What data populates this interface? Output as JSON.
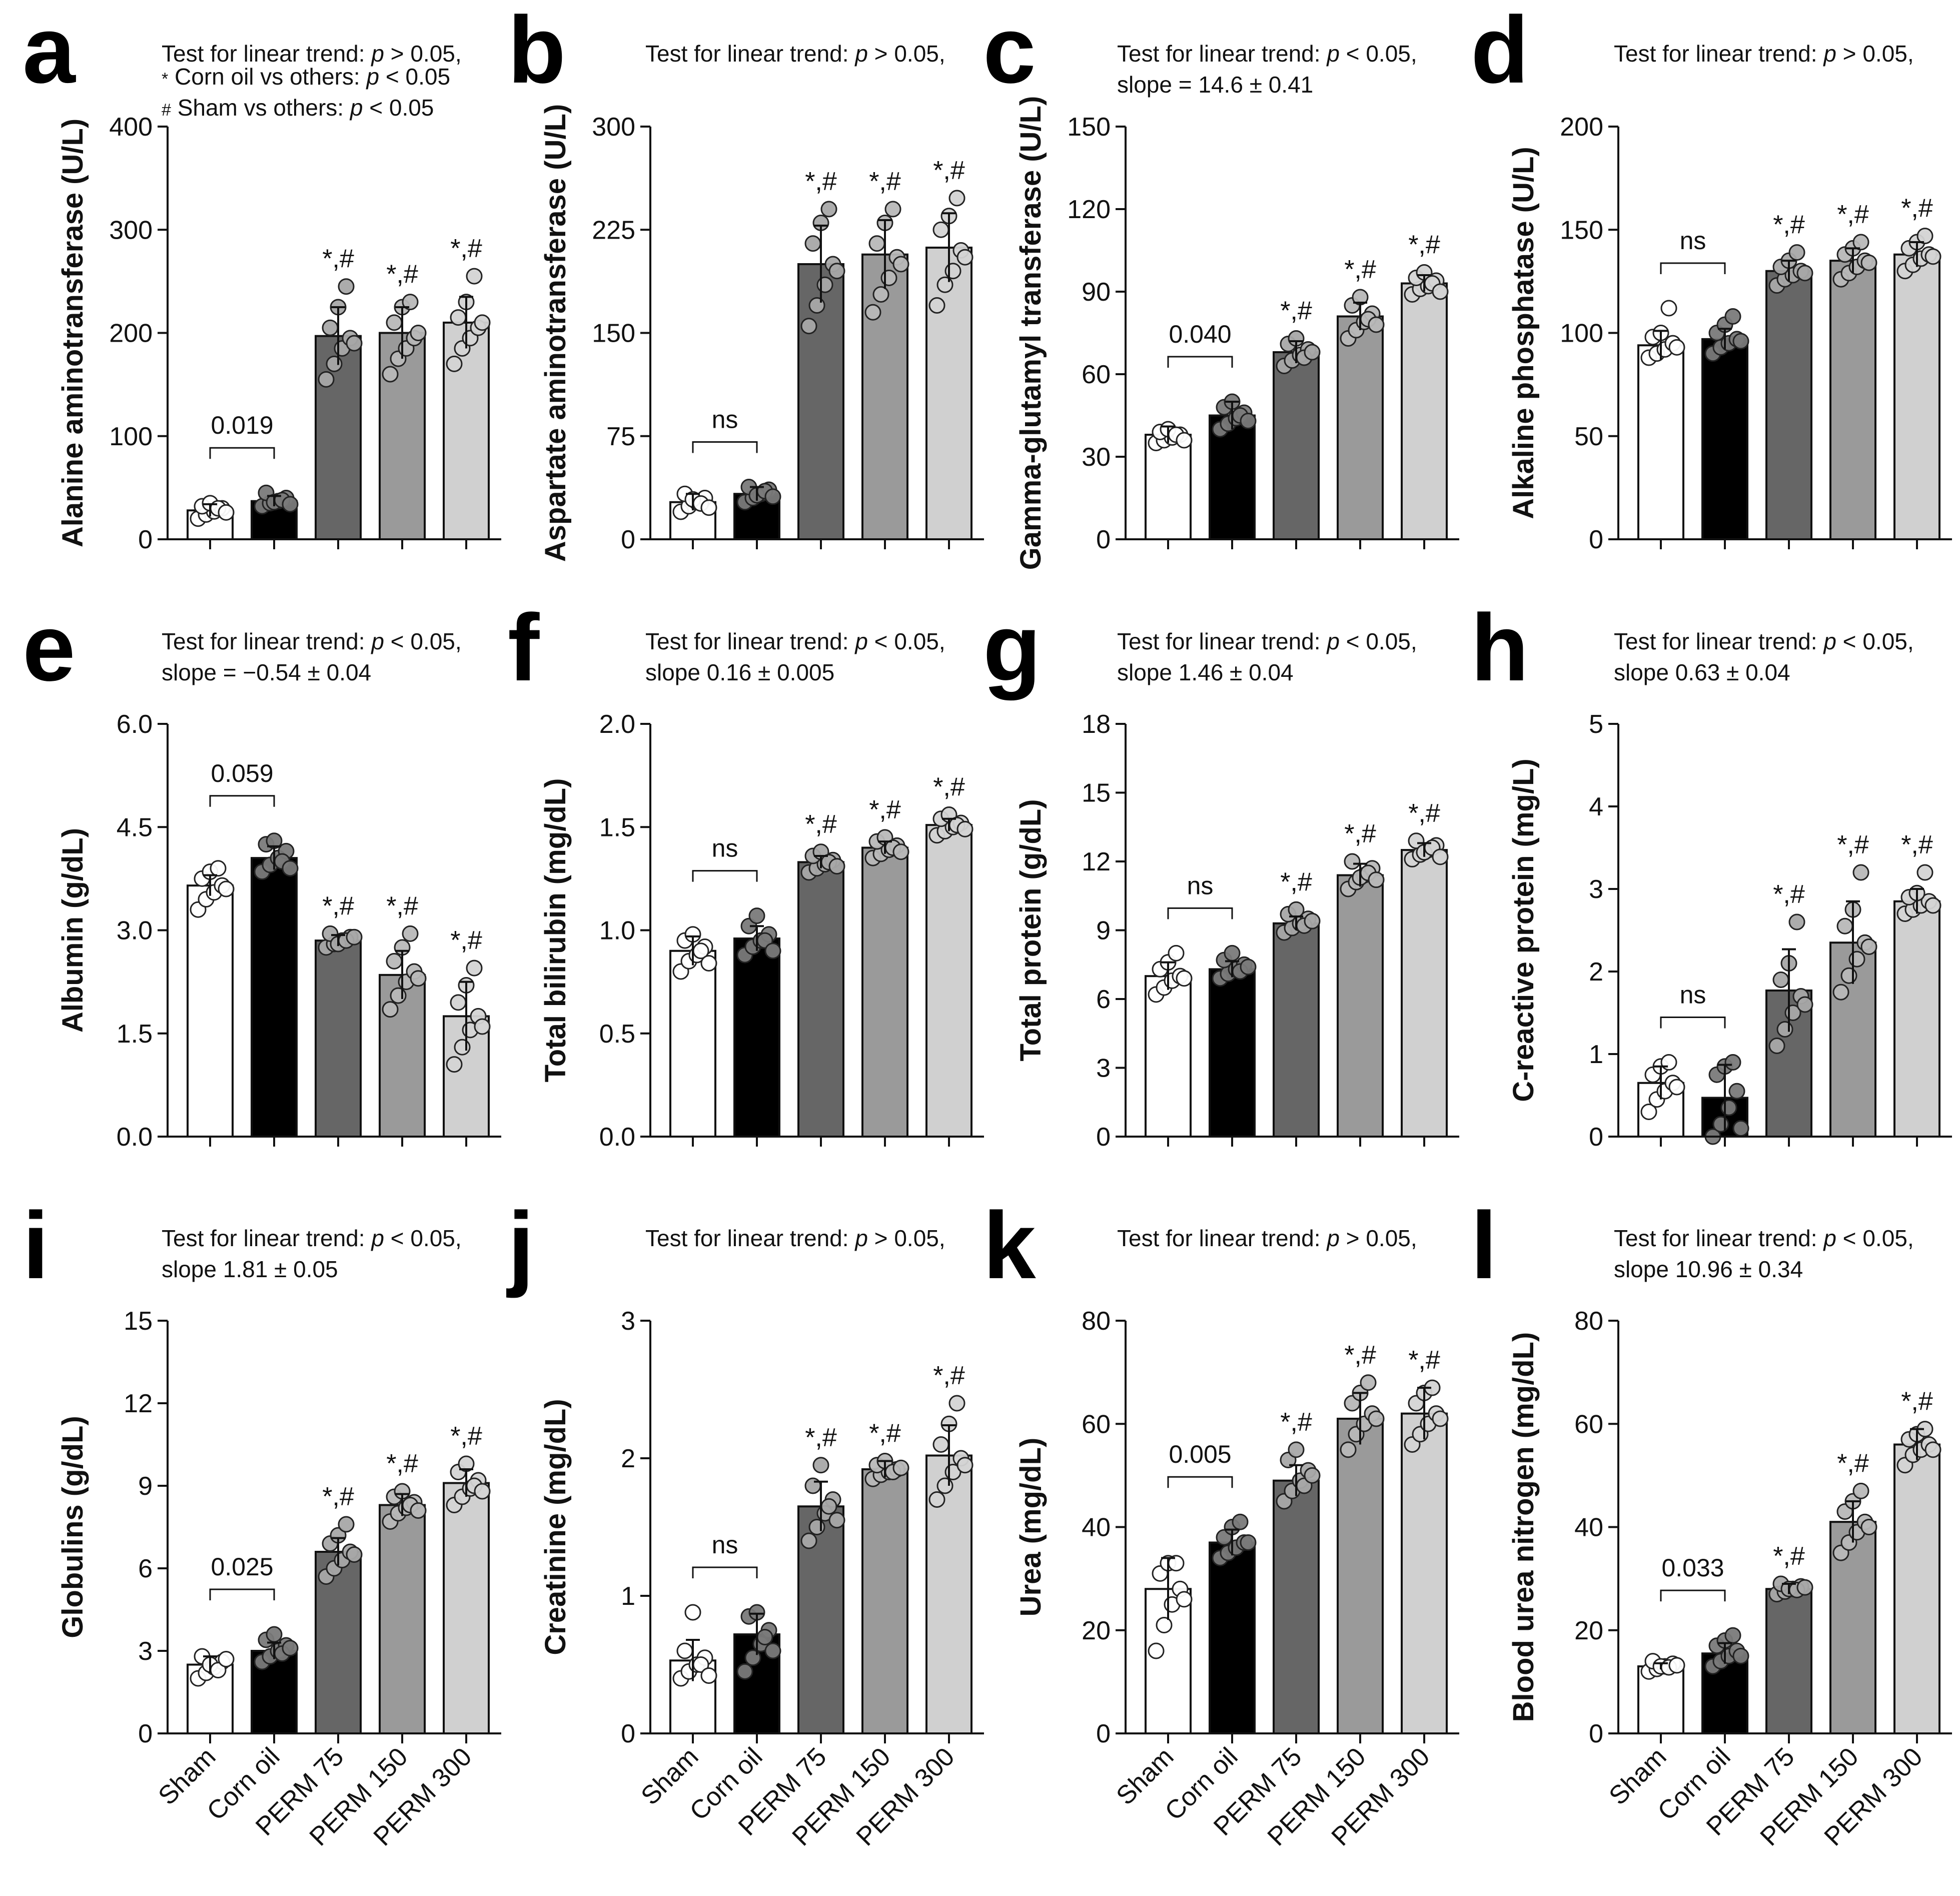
{
  "colors": {
    "groups": [
      "#ffffff",
      "#000000",
      "#666666",
      "#9a9a9a",
      "#d0d0d0"
    ],
    "dots": [
      "#ffffff",
      "#7a7a7a",
      "#a8a8a8",
      "#b8b8b8",
      "#d4d4d4"
    ]
  },
  "groups": [
    "Sham",
    "Corn oil",
    "PERM 75",
    "PERM 150",
    "PERM 300"
  ],
  "sig_label": "*,#",
  "chart_data": [
    {
      "type": "bar",
      "letter": "a",
      "ylabel": "Alanine aminotransferase (U/L)",
      "ylim": [
        0,
        400
      ],
      "ticks": [
        0,
        100,
        200,
        300,
        400
      ],
      "notes": [
        [
          {
            "t": "Test for linear trend: "
          },
          {
            "t": "p",
            "i": true
          },
          {
            "t": " > 0.05,"
          }
        ],
        [
          {
            "t": "*",
            "sup": true
          },
          {
            "t": " Corn oil vs others: "
          },
          {
            "t": "p",
            "i": true
          },
          {
            "t": " < 0.05"
          }
        ],
        [
          {
            "t": "#",
            "sup": true
          },
          {
            "t": " Sham vs others: "
          },
          {
            "t": "p",
            "i": true
          },
          {
            "t": " < 0.05"
          }
        ]
      ],
      "compare_label": "0.019",
      "means": [
        28,
        37,
        197,
        200,
        210
      ],
      "errors": [
        6,
        5,
        28,
        25,
        25
      ],
      "points": [
        [
          20,
          24,
          27,
          30,
          32,
          35,
          30,
          26
        ],
        [
          32,
          35,
          37,
          40,
          45,
          36,
          38,
          34
        ],
        [
          155,
          170,
          185,
          195,
          205,
          225,
          245,
          190
        ],
        [
          160,
          175,
          185,
          195,
          210,
          225,
          230,
          200
        ],
        [
          170,
          185,
          195,
          205,
          215,
          230,
          255,
          210
        ]
      ],
      "sig": [
        false,
        false,
        true,
        true,
        true
      ]
    },
    {
      "type": "bar",
      "letter": "b",
      "ylabel": "Aspartate aminotransferase (U/L)",
      "ylim": [
        0,
        300
      ],
      "ticks": [
        0,
        75,
        150,
        225,
        300
      ],
      "notes": [
        [
          {
            "t": "Test for linear trend: "
          },
          {
            "t": "p",
            "i": true
          },
          {
            "t": " > 0.05,"
          }
        ]
      ],
      "compare_label": "ns",
      "means": [
        27,
        33,
        200,
        207,
        212
      ],
      "errors": [
        6,
        5,
        28,
        25,
        25
      ],
      "points": [
        [
          20,
          24,
          27,
          30,
          33,
          29,
          26,
          23
        ],
        [
          27,
          30,
          33,
          36,
          38,
          32,
          35,
          31
        ],
        [
          155,
          170,
          185,
          200,
          215,
          230,
          240,
          195
        ],
        [
          165,
          178,
          190,
          205,
          215,
          230,
          240,
          200
        ],
        [
          170,
          185,
          195,
          210,
          225,
          235,
          248,
          205
        ]
      ],
      "sig": [
        false,
        false,
        true,
        true,
        true
      ]
    },
    {
      "type": "bar",
      "letter": "c",
      "ylabel": "Gamma-glutamyl transferase (U/L)",
      "ylim": [
        0,
        150
      ],
      "ticks": [
        0,
        30,
        60,
        90,
        120,
        150
      ],
      "notes": [
        [
          {
            "t": "Test for linear trend: "
          },
          {
            "t": "p",
            "i": true
          },
          {
            "t": " < 0.05,"
          }
        ],
        [
          {
            "t": "slope = 14.6 ± 0.41"
          }
        ]
      ],
      "compare_label": "0.040",
      "means": [
        38,
        45,
        68,
        81,
        93
      ],
      "errors": [
        3,
        5,
        4,
        5,
        3
      ],
      "points": [
        [
          35,
          36,
          37,
          38,
          39,
          40,
          38,
          36
        ],
        [
          40,
          42,
          44,
          46,
          48,
          50,
          45,
          43
        ],
        [
          63,
          65,
          67,
          69,
          71,
          73,
          66,
          68
        ],
        [
          73,
          76,
          79,
          82,
          85,
          88,
          80,
          78
        ],
        [
          89,
          91,
          92,
          94,
          95,
          97,
          93,
          90
        ]
      ],
      "sig": [
        false,
        false,
        true,
        true,
        true
      ]
    },
    {
      "type": "bar",
      "letter": "d",
      "ylabel": "Alkaline phosphatase (U/L)",
      "ylim": [
        0,
        200
      ],
      "ticks": [
        0,
        50,
        100,
        150,
        200
      ],
      "notes": [
        [
          {
            "t": "Test for linear trend: "
          },
          {
            "t": "p",
            "i": true
          },
          {
            "t": " > 0.05,"
          }
        ]
      ],
      "compare_label": "ns",
      "means": [
        94,
        97,
        130,
        135,
        138
      ],
      "errors": [
        7,
        5,
        5,
        6,
        6
      ],
      "points": [
        [
          88,
          90,
          92,
          95,
          98,
          100,
          112,
          93
        ],
        [
          90,
          93,
          95,
          97,
          100,
          104,
          108,
          96
        ],
        [
          123,
          126,
          128,
          130,
          132,
          135,
          139,
          129
        ],
        [
          126,
          129,
          132,
          135,
          138,
          141,
          144,
          134
        ],
        [
          130,
          133,
          136,
          138,
          141,
          144,
          147,
          137
        ]
      ],
      "sig": [
        false,
        false,
        true,
        true,
        true
      ]
    },
    {
      "type": "bar",
      "letter": "e",
      "ylabel": "Albumin (g/dL)",
      "ylim": [
        0,
        6
      ],
      "ticks": [
        0.0,
        1.5,
        3.0,
        4.5,
        6.0
      ],
      "tick_decimals": 1,
      "notes": [
        [
          {
            "t": "Test for linear trend: "
          },
          {
            "t": "p",
            "i": true
          },
          {
            "t": " < 0.05,"
          }
        ],
        [
          {
            "t": "slope = −0.54 ± 0.04"
          }
        ]
      ],
      "compare_label": "0.059",
      "means": [
        3.65,
        4.05,
        2.85,
        2.35,
        1.75
      ],
      "errors": [
        0.15,
        0.17,
        0.08,
        0.35,
        0.5
      ],
      "points": [
        [
          3.3,
          3.45,
          3.55,
          3.65,
          3.75,
          3.85,
          3.9,
          3.6
        ],
        [
          3.85,
          3.95,
          4.05,
          4.15,
          4.25,
          4.3,
          4.0,
          3.9
        ],
        [
          2.75,
          2.8,
          2.85,
          2.9,
          2.95,
          2.8,
          2.85,
          2.9
        ],
        [
          1.85,
          2.05,
          2.25,
          2.4,
          2.55,
          2.75,
          2.95,
          2.3
        ],
        [
          1.05,
          1.3,
          1.55,
          1.75,
          1.95,
          2.2,
          2.45,
          1.6
        ]
      ],
      "sig": [
        false,
        false,
        true,
        true,
        true
      ]
    },
    {
      "type": "bar",
      "letter": "f",
      "ylabel": "Total bilirubin (mg/dL)",
      "ylim": [
        0,
        2
      ],
      "ticks": [
        0.0,
        0.5,
        1.0,
        1.5,
        2.0
      ],
      "tick_decimals": 1,
      "notes": [
        [
          {
            "t": "Test for linear trend: "
          },
          {
            "t": "p",
            "i": true
          },
          {
            "t": " < 0.05,"
          }
        ],
        [
          {
            "t": "slope 0.16 ± 0.005"
          }
        ]
      ],
      "compare_label": "ns",
      "means": [
        0.9,
        0.96,
        1.33,
        1.4,
        1.51
      ],
      "errors": [
        0.07,
        0.06,
        0.03,
        0.03,
        0.03
      ],
      "points": [
        [
          0.8,
          0.85,
          0.88,
          0.92,
          0.95,
          0.98,
          0.9,
          0.84
        ],
        [
          0.88,
          0.92,
          0.95,
          0.98,
          1.02,
          1.07,
          0.95,
          0.9
        ],
        [
          1.28,
          1.3,
          1.32,
          1.34,
          1.36,
          1.38,
          1.33,
          1.31
        ],
        [
          1.35,
          1.37,
          1.39,
          1.41,
          1.43,
          1.45,
          1.4,
          1.38
        ],
        [
          1.46,
          1.48,
          1.5,
          1.52,
          1.54,
          1.56,
          1.51,
          1.49
        ]
      ],
      "sig": [
        false,
        false,
        true,
        true,
        true
      ]
    },
    {
      "type": "bar",
      "letter": "g",
      "ylabel": "Total protein (g/dL)",
      "ylim": [
        0,
        18
      ],
      "ticks": [
        0,
        3,
        6,
        9,
        12,
        15,
        18
      ],
      "notes": [
        [
          {
            "t": "Test for linear trend: "
          },
          {
            "t": "p",
            "i": true
          },
          {
            "t": " < 0.05,"
          }
        ],
        [
          {
            "t": "slope 1.46 ± 0.04"
          }
        ]
      ],
      "compare_label": "ns",
      "means": [
        7.0,
        7.3,
        9.3,
        11.4,
        12.5
      ],
      "errors": [
        0.6,
        0.35,
        0.3,
        0.5,
        0.3
      ],
      "points": [
        [
          6.2,
          6.5,
          6.8,
          7.0,
          7.3,
          7.6,
          8.0,
          6.9
        ],
        [
          6.9,
          7.1,
          7.3,
          7.5,
          7.7,
          8.0,
          7.2,
          7.4
        ],
        [
          8.9,
          9.1,
          9.3,
          9.5,
          9.7,
          9.9,
          9.2,
          9.4
        ],
        [
          10.8,
          11.1,
          11.4,
          11.7,
          12.0,
          11.3,
          11.5,
          11.2
        ],
        [
          12.1,
          12.3,
          12.5,
          12.7,
          12.9,
          12.4,
          12.6,
          12.2
        ]
      ],
      "sig": [
        false,
        false,
        true,
        true,
        true
      ]
    },
    {
      "type": "bar",
      "letter": "h",
      "ylabel": "C-reactive protein (mg/L)",
      "ylim": [
        0,
        5
      ],
      "ticks": [
        0,
        1,
        2,
        3,
        4,
        5
      ],
      "notes": [
        [
          {
            "t": "Test for linear trend: "
          },
          {
            "t": "p",
            "i": true
          },
          {
            "t": " < 0.05,"
          }
        ],
        [
          {
            "t": "slope 0.63 ± 0.04"
          }
        ]
      ],
      "compare_label": "ns",
      "means": [
        0.65,
        0.47,
        1.77,
        2.35,
        2.85
      ],
      "errors": [
        0.2,
        0.4,
        0.5,
        0.5,
        0.15
      ],
      "points": [
        [
          0.3,
          0.45,
          0.55,
          0.65,
          0.75,
          0.85,
          0.9,
          0.6
        ],
        [
          0.0,
          0.15,
          0.35,
          0.55,
          0.75,
          0.85,
          0.9,
          0.1
        ],
        [
          1.1,
          1.3,
          1.5,
          1.7,
          1.9,
          2.1,
          2.6,
          1.6
        ],
        [
          1.75,
          1.95,
          2.15,
          2.35,
          2.55,
          2.75,
          3.2,
          2.3
        ],
        [
          2.7,
          2.75,
          2.8,
          2.85,
          2.9,
          2.95,
          3.2,
          2.8
        ]
      ],
      "sig": [
        false,
        false,
        true,
        true,
        true
      ]
    },
    {
      "type": "bar",
      "letter": "i",
      "ylabel": "Globulins (g/dL)",
      "ylim": [
        0,
        15
      ],
      "ticks": [
        0,
        3,
        6,
        9,
        12,
        15
      ],
      "notes": [
        [
          {
            "t": "Test for linear trend: "
          },
          {
            "t": "p",
            "i": true
          },
          {
            "t": " < 0.05,"
          }
        ],
        [
          {
            "t": "slope 1.81 ± 0.05"
          }
        ]
      ],
      "compare_label": "0.025",
      "means": [
        2.5,
        3.0,
        6.6,
        8.3,
        9.1
      ],
      "errors": [
        0.3,
        0.3,
        0.5,
        0.4,
        0.5
      ],
      "points": [
        [
          2.0,
          2.2,
          2.4,
          2.6,
          2.8,
          2.5,
          2.3,
          2.7
        ],
        [
          2.6,
          2.8,
          3.0,
          3.2,
          3.4,
          3.6,
          2.9,
          3.1
        ],
        [
          5.7,
          6.0,
          6.3,
          6.6,
          6.9,
          7.2,
          7.6,
          6.5
        ],
        [
          7.7,
          8.0,
          8.2,
          8.4,
          8.6,
          8.8,
          8.3,
          8.1
        ],
        [
          8.3,
          8.6,
          8.9,
          9.2,
          9.5,
          9.8,
          9.0,
          8.8
        ]
      ],
      "sig": [
        false,
        false,
        true,
        true,
        true
      ]
    },
    {
      "type": "bar",
      "letter": "j",
      "ylabel": "Creatinine (mg/dL)",
      "ylim": [
        0,
        3
      ],
      "ticks": [
        0,
        1,
        2,
        3
      ],
      "notes": [
        [
          {
            "t": "Test for linear trend: "
          },
          {
            "t": "p",
            "i": true
          },
          {
            "t": " > 0.05,"
          }
        ]
      ],
      "compare_label": "ns",
      "means": [
        0.53,
        0.72,
        1.65,
        1.92,
        2.02
      ],
      "errors": [
        0.15,
        0.15,
        0.18,
        0.06,
        0.22
      ],
      "points": [
        [
          0.4,
          0.45,
          0.5,
          0.55,
          0.6,
          0.88,
          0.5,
          0.42
        ],
        [
          0.45,
          0.55,
          0.65,
          0.75,
          0.85,
          0.88,
          0.7,
          0.6
        ],
        [
          1.4,
          1.5,
          1.6,
          1.7,
          1.8,
          1.95,
          1.65,
          1.55
        ],
        [
          1.85,
          1.88,
          1.9,
          1.92,
          1.95,
          1.98,
          1.9,
          1.93
        ],
        [
          1.7,
          1.8,
          1.9,
          2.0,
          2.1,
          2.25,
          2.4,
          1.95
        ]
      ],
      "sig": [
        false,
        false,
        true,
        true,
        true
      ]
    },
    {
      "type": "bar",
      "letter": "k",
      "ylabel": "Urea (mg/dL)",
      "ylim": [
        0,
        80
      ],
      "ticks": [
        0,
        20,
        40,
        60,
        80
      ],
      "notes": [
        [
          {
            "t": "Test for linear trend: "
          },
          {
            "t": "p",
            "i": true
          },
          {
            "t": " > 0.05,"
          }
        ]
      ],
      "compare_label": "0.005",
      "means": [
        28,
        37,
        49,
        61,
        62
      ],
      "errors": [
        6,
        2.5,
        3,
        5,
        5
      ],
      "points": [
        [
          16,
          21,
          25,
          28,
          31,
          33,
          33,
          26
        ],
        [
          34,
          35,
          36,
          37,
          38,
          40,
          41,
          37
        ],
        [
          45,
          47,
          49,
          51,
          53,
          55,
          48,
          50
        ],
        [
          55,
          58,
          60,
          62,
          64,
          66,
          68,
          61
        ],
        [
          56,
          58,
          60,
          62,
          64,
          66,
          67,
          61
        ]
      ],
      "sig": [
        false,
        false,
        true,
        true,
        true
      ]
    },
    {
      "type": "bar",
      "letter": "l",
      "ylabel": "Blood urea nitrogen (mg/dL)",
      "ylim": [
        0,
        80
      ],
      "ticks": [
        0,
        20,
        40,
        60,
        80
      ],
      "notes": [
        [
          {
            "t": "Test for linear trend: "
          },
          {
            "t": "p",
            "i": true
          },
          {
            "t": " < 0.05,"
          }
        ],
        [
          {
            "t": "slope 10.96 ± 0.34"
          }
        ]
      ],
      "compare_label": "0.033",
      "means": [
        13,
        15.5,
        28,
        41,
        56
      ],
      "errors": [
        0.6,
        2,
        1,
        4,
        3
      ],
      "points": [
        [
          12,
          12.5,
          13,
          13.5,
          14,
          13,
          12.8,
          13.2
        ],
        [
          13,
          14,
          15,
          16,
          17,
          18,
          19,
          15
        ],
        [
          27,
          27.5,
          28,
          28.5,
          29,
          28,
          27.8,
          28.3
        ],
        [
          35,
          37,
          39,
          41,
          43,
          45,
          47,
          40
        ],
        [
          52,
          54,
          55,
          56,
          57,
          58,
          59,
          55
        ]
      ],
      "sig": [
        false,
        false,
        true,
        true,
        true
      ]
    }
  ]
}
